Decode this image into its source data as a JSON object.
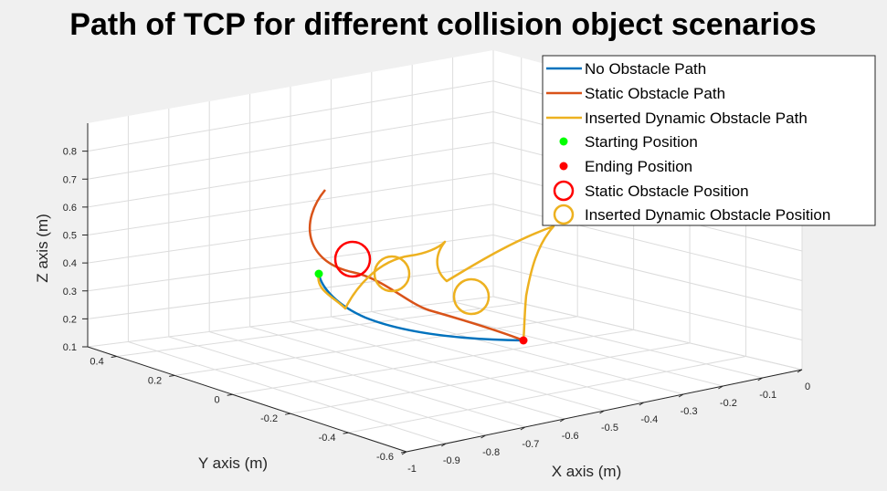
{
  "figure": {
    "background": "#f0f0f0",
    "axes_background": "#ffffff",
    "grid_color": "#dcdcdc"
  },
  "chart_data": {
    "type": "line3d",
    "title": "Path of TCP for different collision object scenarios",
    "xlabel": "X axis (m)",
    "ylabel": "Y axis (m)",
    "zlabel": "Z axis (m)",
    "xlim": [
      -1,
      0
    ],
    "ylim": [
      -0.6,
      0.5
    ],
    "zlim": [
      0.1,
      0.9
    ],
    "x_ticks": [
      "-1",
      "-0.9",
      "-0.8",
      "-0.7",
      "-0.6",
      "-0.5",
      "-0.4",
      "-0.3",
      "-0.2",
      "-0.1",
      "0"
    ],
    "y_ticks": [
      "-0.6",
      "-0.4",
      "-0.2",
      "0",
      "0.2",
      "0.4"
    ],
    "z_ticks": [
      "0.1",
      "0.2",
      "0.3",
      "0.4",
      "0.5",
      "0.6",
      "0.7",
      "0.8"
    ],
    "grid": true,
    "legend_position": "top-right",
    "series": [
      {
        "name": "No Obstacle Path",
        "kind": "line",
        "color": "#0072bd"
      },
      {
        "name": "Static Obstacle Path",
        "kind": "line",
        "color": "#d95319"
      },
      {
        "name": "Inserted Dynamic Obstacle Path",
        "kind": "line",
        "color": "#edb120"
      },
      {
        "name": "Starting Position",
        "kind": "point",
        "color": "#00ff00"
      },
      {
        "name": "Ending Position",
        "kind": "point",
        "color": "#ff0000"
      },
      {
        "name": "Static Obstacle Position",
        "kind": "circle",
        "color": "#ff0000"
      },
      {
        "name": "Inserted Dynamic Obstacle Position",
        "kind": "circle",
        "color": "#edb120"
      }
    ]
  }
}
